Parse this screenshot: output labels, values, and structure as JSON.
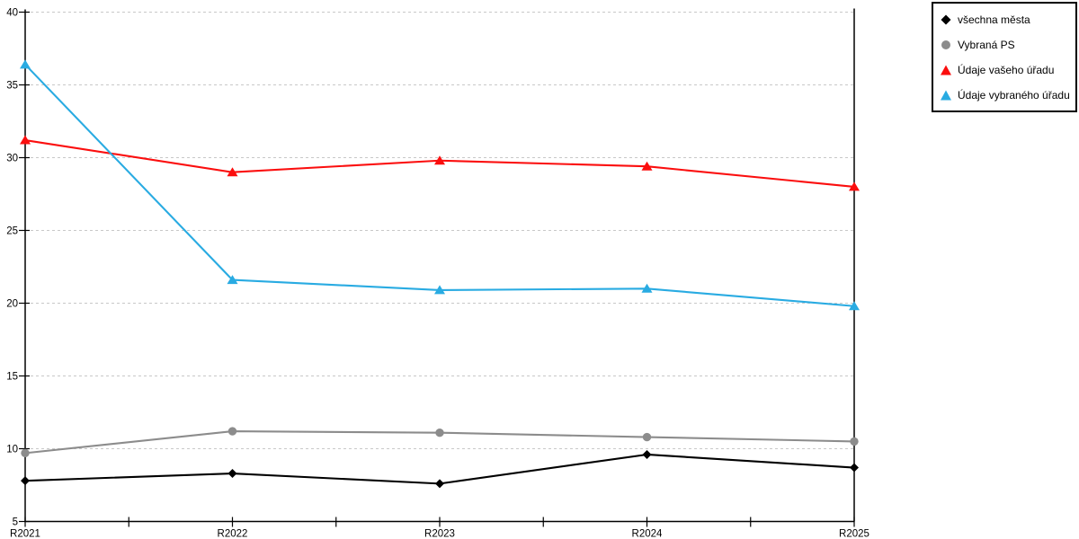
{
  "chart_data": {
    "type": "line",
    "title": "",
    "xlabel": "",
    "ylabel": "",
    "categories": [
      "R2021",
      "R2022",
      "R2023",
      "R2024",
      "R2025"
    ],
    "series": [
      {
        "name": "všechna města",
        "color": "#000000",
        "marker": "diamond",
        "values": [
          7.8,
          8.3,
          7.6,
          9.6,
          8.7
        ]
      },
      {
        "name": "Vybraná PS",
        "color": "#8c8c8c",
        "marker": "circle",
        "values": [
          9.7,
          11.2,
          11.1,
          10.8,
          10.5
        ]
      },
      {
        "name": "Údaje vašeho úřadu",
        "color": "#fb0e0e",
        "marker": "triangle",
        "values": [
          31.2,
          29.0,
          29.8,
          29.4,
          28.0
        ]
      },
      {
        "name": "Údaje vybraného úřadu",
        "color": "#29abe2",
        "marker": "triangle",
        "values": [
          36.4,
          21.6,
          20.9,
          21.0,
          19.8
        ]
      }
    ],
    "ylim": [
      5,
      40
    ],
    "yticks": [
      5,
      10,
      15,
      20,
      25,
      30,
      35,
      40
    ],
    "grid": "horizontal-dashed",
    "grid_color": "#c8c8c8",
    "axis_color": "#000000",
    "legend_position": "top-right-outside",
    "legend_border_color": "#000000"
  }
}
